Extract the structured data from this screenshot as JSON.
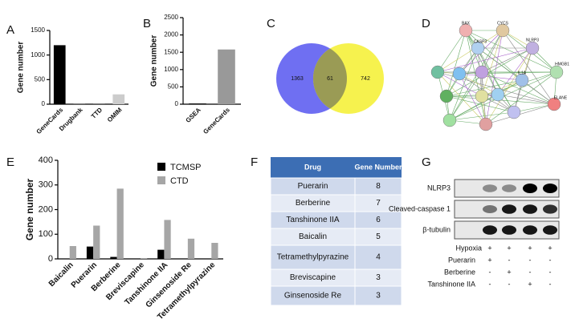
{
  "panel_labels": [
    "A",
    "B",
    "C",
    "D",
    "E",
    "F",
    "G"
  ],
  "chart_data": [
    {
      "type": "bar",
      "ylabel": "Gene number",
      "categories": [
        "GeneCards",
        "Drugbank",
        "TTD",
        "OMIM"
      ],
      "values": [
        1200,
        10,
        5,
        200
      ],
      "colors": [
        "#000000",
        "#555555",
        "#555555",
        "#cccccc"
      ],
      "ylim": [
        0,
        1500
      ],
      "yticks": [
        0,
        500,
        1000,
        1500
      ]
    },
    {
      "type": "bar",
      "ylabel": "Gene number",
      "categories": [
        "GSEA",
        "GeneCards"
      ],
      "values": [
        20,
        1580
      ],
      "colors": [
        "#000000",
        "#999999"
      ],
      "ylim": [
        0,
        2500
      ],
      "yticks": [
        0,
        500,
        1000,
        1500,
        2000,
        2500
      ]
    },
    {
      "type": "grouped_bar",
      "ylabel": "Gene number",
      "categories": [
        "Baicalin",
        "Puerarin",
        "Berberine",
        "Breviscapine",
        "Tanshinone IIA",
        "Ginsenoside Re",
        "Tetramethylpyrazine"
      ],
      "series": [
        {
          "name": "TCMSP",
          "color": "#000000",
          "values": [
            0,
            50,
            8,
            0,
            37,
            0,
            0
          ]
        },
        {
          "name": "CTD",
          "color": "#a6a6a6",
          "values": [
            52,
            135,
            285,
            3,
            158,
            82,
            65
          ]
        }
      ],
      "ylim": [
        0,
        400
      ],
      "yticks": [
        0,
        100,
        200,
        300,
        400
      ]
    }
  ],
  "venn": {
    "left_count": "1363",
    "center_count": "61",
    "right_count": "742"
  },
  "network": {
    "nodes": [
      "BAX",
      "CYCS",
      "CASP3",
      "NLRP3",
      "HMGB1",
      "IL1A",
      "ELANE"
    ]
  },
  "table": {
    "header": [
      "Drug",
      "Gene Number"
    ],
    "rows": [
      [
        "Puerarin",
        "8"
      ],
      [
        "Berberine",
        "7"
      ],
      [
        "Tanshinone IIA",
        "6"
      ],
      [
        "Baicalin",
        "5"
      ],
      [
        "Tetramethylpyrazine",
        "4"
      ],
      [
        "Breviscapine",
        "3"
      ],
      [
        "Ginsenoside Re",
        "3"
      ]
    ]
  },
  "blot": {
    "bands": [
      "NLRP3",
      "Cleaved-caspase 1",
      "β-tubulin"
    ],
    "treatments": [
      {
        "name": "Hypoxia",
        "signs": [
          "+",
          "+",
          "+",
          "+"
        ]
      },
      {
        "name": "Puerarin",
        "signs": [
          "+",
          "-",
          "-",
          "-"
        ]
      },
      {
        "name": "Berberine",
        "signs": [
          "-",
          "+",
          "-",
          "-"
        ]
      },
      {
        "name": "Tanshinone IIA",
        "signs": [
          "-",
          "-",
          "+",
          "-"
        ]
      }
    ]
  }
}
